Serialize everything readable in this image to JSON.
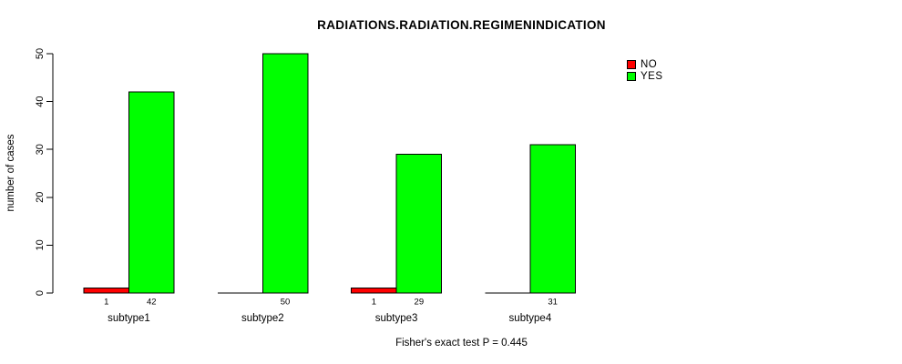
{
  "chart_data": {
    "type": "bar",
    "title": "RADIATIONS.RADIATION.REGIMENINDICATION",
    "ylabel": "number of cases",
    "xlabel": "",
    "categories": [
      "subtype1",
      "subtype2",
      "subtype3",
      "subtype4"
    ],
    "series": [
      {
        "name": "NO",
        "color": "#ff0000",
        "values": [
          1,
          0,
          1,
          0
        ]
      },
      {
        "name": "YES",
        "color": "#00ff00",
        "values": [
          42,
          50,
          29,
          31
        ]
      }
    ],
    "value_labels": [
      [
        "1",
        "42"
      ],
      [
        "",
        "50"
      ],
      [
        "1",
        "29"
      ],
      [
        "",
        "31"
      ]
    ],
    "ylim": [
      0,
      50
    ],
    "yticks": [
      0,
      10,
      20,
      30,
      40,
      50
    ],
    "grid": false,
    "legend_position": "top-right",
    "caption": "Fisher's exact test P = 0.445"
  },
  "colors": {
    "background": "#ffffff",
    "axis": "#000000",
    "bar_no": "#ff0000",
    "bar_yes": "#00ff00"
  }
}
